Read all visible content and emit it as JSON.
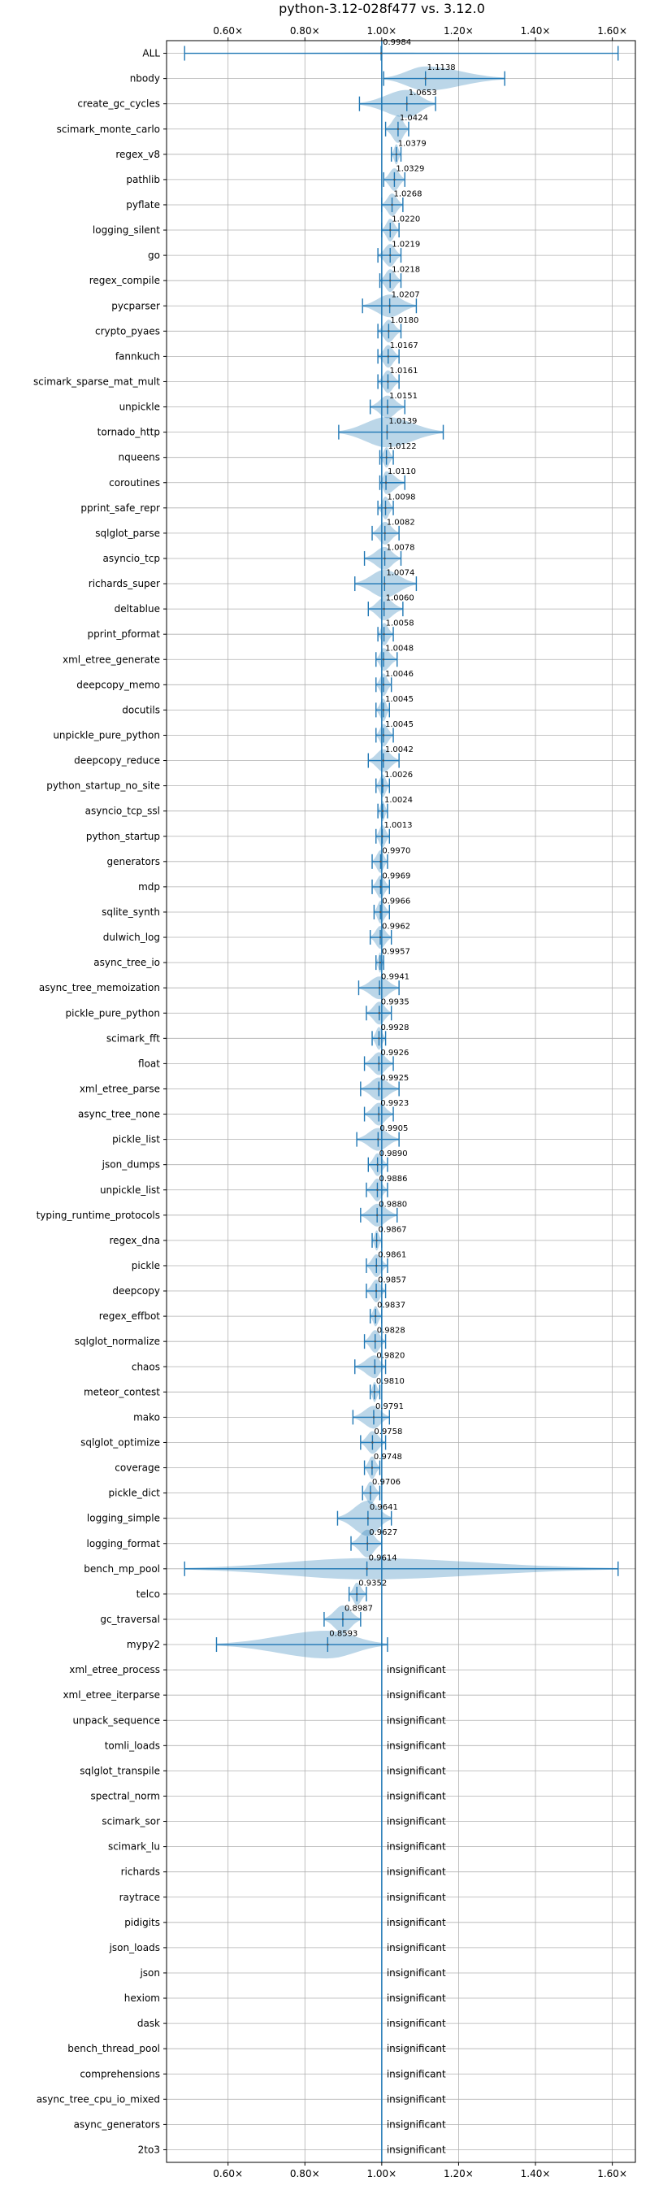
{
  "chart_data": {
    "type": "violin",
    "title": "python-3.12-028f477 vs. 3.12.0",
    "x_ticks": [
      "0.60×",
      "0.80×",
      "1.00×",
      "1.20×",
      "1.40×",
      "1.60×"
    ],
    "x_tick_values": [
      0.6,
      0.8,
      1.0,
      1.2,
      1.4,
      1.6
    ],
    "xlim": [
      0.44,
      1.66
    ],
    "reference_line": 1.0,
    "grid": true,
    "insignificant_label": "insignificant",
    "benchmarks": [
      {
        "name": "ALL",
        "value": 0.9984,
        "label": "0.9984",
        "min": 0.487,
        "max": 1.615,
        "width": 0.03
      },
      {
        "name": "nbody",
        "value": 1.1138,
        "label": "1.1138",
        "min": 1.005,
        "max": 1.32,
        "width": 0.48
      },
      {
        "name": "create_gc_cycles",
        "value": 1.0653,
        "label": "1.0653",
        "min": 0.942,
        "max": 1.14,
        "width": 0.55
      },
      {
        "name": "scimark_monte_carlo",
        "value": 1.0424,
        "label": "1.0424",
        "min": 1.01,
        "max": 1.07,
        "width": 0.55
      },
      {
        "name": "regex_v8",
        "value": 1.0379,
        "label": "1.0379",
        "min": 1.025,
        "max": 1.05,
        "width": 0.4
      },
      {
        "name": "pathlib",
        "value": 1.0329,
        "label": "1.0329",
        "min": 1.005,
        "max": 1.06,
        "width": 0.45
      },
      {
        "name": "pyflate",
        "value": 1.0268,
        "label": "1.0268",
        "min": 1.0,
        "max": 1.055,
        "width": 0.45
      },
      {
        "name": "logging_silent",
        "value": 1.022,
        "label": "1.0220",
        "min": 1.0,
        "max": 1.045,
        "width": 0.45
      },
      {
        "name": "go",
        "value": 1.0219,
        "label": "1.0219",
        "min": 0.99,
        "max": 1.05,
        "width": 0.45
      },
      {
        "name": "regex_compile",
        "value": 1.0218,
        "label": "1.0218",
        "min": 0.995,
        "max": 1.05,
        "width": 0.45
      },
      {
        "name": "pycparser",
        "value": 1.0207,
        "label": "1.0207",
        "min": 0.95,
        "max": 1.09,
        "width": 0.45
      },
      {
        "name": "crypto_pyaes",
        "value": 1.018,
        "label": "1.0180",
        "min": 0.99,
        "max": 1.05,
        "width": 0.45
      },
      {
        "name": "fannkuch",
        "value": 1.0167,
        "label": "1.0167",
        "min": 0.99,
        "max": 1.045,
        "width": 0.45
      },
      {
        "name": "scimark_sparse_mat_mult",
        "value": 1.0161,
        "label": "1.0161",
        "min": 0.99,
        "max": 1.045,
        "width": 0.45
      },
      {
        "name": "unpickle",
        "value": 1.0151,
        "label": "1.0151",
        "min": 0.97,
        "max": 1.06,
        "width": 0.45
      },
      {
        "name": "tornado_http",
        "value": 1.0139,
        "label": "1.0139",
        "min": 0.888,
        "max": 1.16,
        "width": 0.6
      },
      {
        "name": "nqueens",
        "value": 1.0122,
        "label": "1.0122",
        "min": 0.995,
        "max": 1.03,
        "width": 0.4
      },
      {
        "name": "coroutines",
        "value": 1.011,
        "label": "1.0110",
        "min": 0.995,
        "max": 1.06,
        "width": 0.45
      },
      {
        "name": "pprint_safe_repr",
        "value": 1.0098,
        "label": "1.0098",
        "min": 0.99,
        "max": 1.03,
        "width": 0.45
      },
      {
        "name": "sqlglot_parse",
        "value": 1.0082,
        "label": "1.0082",
        "min": 0.975,
        "max": 1.045,
        "width": 0.45
      },
      {
        "name": "asyncio_tcp",
        "value": 1.0078,
        "label": "1.0078",
        "min": 0.955,
        "max": 1.05,
        "width": 0.45
      },
      {
        "name": "richards_super",
        "value": 1.0074,
        "label": "1.0074",
        "min": 0.93,
        "max": 1.09,
        "width": 0.55
      },
      {
        "name": "deltablue",
        "value": 1.006,
        "label": "1.0060",
        "min": 0.965,
        "max": 1.055,
        "width": 0.45
      },
      {
        "name": "pprint_pformat",
        "value": 1.0058,
        "label": "1.0058",
        "min": 0.99,
        "max": 1.03,
        "width": 0.45
      },
      {
        "name": "xml_etree_generate",
        "value": 1.0048,
        "label": "1.0048",
        "min": 0.985,
        "max": 1.04,
        "width": 0.45
      },
      {
        "name": "deepcopy_memo",
        "value": 1.0046,
        "label": "1.0046",
        "min": 0.985,
        "max": 1.025,
        "width": 0.45
      },
      {
        "name": "docutils",
        "value": 1.0045,
        "label": "1.0045",
        "min": 0.985,
        "max": 1.02,
        "width": 0.45
      },
      {
        "name": "unpickle_pure_python",
        "value": 1.0045,
        "label": "1.0045",
        "min": 0.985,
        "max": 1.03,
        "width": 0.45
      },
      {
        "name": "deepcopy_reduce",
        "value": 1.0042,
        "label": "1.0042",
        "min": 0.965,
        "max": 1.045,
        "width": 0.45
      },
      {
        "name": "python_startup_no_site",
        "value": 1.0026,
        "label": "1.0026",
        "min": 0.985,
        "max": 1.02,
        "width": 0.45
      },
      {
        "name": "asyncio_tcp_ssl",
        "value": 1.0024,
        "label": "1.0024",
        "min": 0.99,
        "max": 1.015,
        "width": 0.4
      },
      {
        "name": "python_startup",
        "value": 1.0013,
        "label": "1.0013",
        "min": 0.985,
        "max": 1.02,
        "width": 0.45
      },
      {
        "name": "generators",
        "value": 0.997,
        "label": "0.9970",
        "min": 0.975,
        "max": 1.015,
        "width": 0.45
      },
      {
        "name": "mdp",
        "value": 0.9969,
        "label": "0.9969",
        "min": 0.975,
        "max": 1.02,
        "width": 0.45
      },
      {
        "name": "sqlite_synth",
        "value": 0.9966,
        "label": "0.9966",
        "min": 0.98,
        "max": 1.02,
        "width": 0.45
      },
      {
        "name": "dulwich_log",
        "value": 0.9962,
        "label": "0.9962",
        "min": 0.97,
        "max": 1.025,
        "width": 0.45
      },
      {
        "name": "async_tree_io",
        "value": 0.9957,
        "label": "0.9957",
        "min": 0.985,
        "max": 1.005,
        "width": 0.4
      },
      {
        "name": "async_tree_memoization",
        "value": 0.9941,
        "label": "0.9941",
        "min": 0.94,
        "max": 1.045,
        "width": 0.45
      },
      {
        "name": "pickle_pure_python",
        "value": 0.9935,
        "label": "0.9935",
        "min": 0.96,
        "max": 1.025,
        "width": 0.45
      },
      {
        "name": "scimark_fft",
        "value": 0.9928,
        "label": "0.9928",
        "min": 0.975,
        "max": 1.01,
        "width": 0.45
      },
      {
        "name": "float",
        "value": 0.9926,
        "label": "0.9926",
        "min": 0.955,
        "max": 1.03,
        "width": 0.45
      },
      {
        "name": "xml_etree_parse",
        "value": 0.9925,
        "label": "0.9925",
        "min": 0.945,
        "max": 1.045,
        "width": 0.45
      },
      {
        "name": "async_tree_none",
        "value": 0.9923,
        "label": "0.9923",
        "min": 0.955,
        "max": 1.03,
        "width": 0.45
      },
      {
        "name": "pickle_list",
        "value": 0.9905,
        "label": "0.9905",
        "min": 0.935,
        "max": 1.045,
        "width": 0.45
      },
      {
        "name": "json_dumps",
        "value": 0.989,
        "label": "0.9890",
        "min": 0.965,
        "max": 1.015,
        "width": 0.45
      },
      {
        "name": "unpickle_list",
        "value": 0.9886,
        "label": "0.9886",
        "min": 0.96,
        "max": 1.015,
        "width": 0.45
      },
      {
        "name": "typing_runtime_protocols",
        "value": 0.988,
        "label": "0.9880",
        "min": 0.945,
        "max": 1.04,
        "width": 0.45
      },
      {
        "name": "regex_dna",
        "value": 0.9867,
        "label": "0.9867",
        "min": 0.975,
        "max": 1.0,
        "width": 0.4
      },
      {
        "name": "pickle",
        "value": 0.9861,
        "label": "0.9861",
        "min": 0.96,
        "max": 1.015,
        "width": 0.45
      },
      {
        "name": "deepcopy",
        "value": 0.9857,
        "label": "0.9857",
        "min": 0.96,
        "max": 1.01,
        "width": 0.45
      },
      {
        "name": "regex_effbot",
        "value": 0.9837,
        "label": "0.9837",
        "min": 0.97,
        "max": 1.0,
        "width": 0.4
      },
      {
        "name": "sqlglot_normalize",
        "value": 0.9828,
        "label": "0.9828",
        "min": 0.955,
        "max": 1.01,
        "width": 0.45
      },
      {
        "name": "chaos",
        "value": 0.982,
        "label": "0.9820",
        "min": 0.93,
        "max": 1.01,
        "width": 0.45
      },
      {
        "name": "meteor_contest",
        "value": 0.981,
        "label": "0.9810",
        "min": 0.97,
        "max": 0.995,
        "width": 0.4
      },
      {
        "name": "mako",
        "value": 0.9791,
        "label": "0.9791",
        "min": 0.925,
        "max": 1.02,
        "width": 0.45
      },
      {
        "name": "sqlglot_optimize",
        "value": 0.9758,
        "label": "0.9758",
        "min": 0.945,
        "max": 1.01,
        "width": 0.45
      },
      {
        "name": "coverage",
        "value": 0.9748,
        "label": "0.9748",
        "min": 0.955,
        "max": 0.995,
        "width": 0.45
      },
      {
        "name": "pickle_dict",
        "value": 0.9706,
        "label": "0.9706",
        "min": 0.95,
        "max": 0.995,
        "width": 0.45
      },
      {
        "name": "logging_simple",
        "value": 0.9641,
        "label": "0.9641",
        "min": 0.885,
        "max": 1.025,
        "width": 0.7
      },
      {
        "name": "logging_format",
        "value": 0.9627,
        "label": "0.9627",
        "min": 0.92,
        "max": 1.0,
        "width": 0.55
      },
      {
        "name": "bench_mp_pool",
        "value": 0.9614,
        "label": "0.9614",
        "min": 0.487,
        "max": 1.615,
        "width": 0.42
      },
      {
        "name": "telco",
        "value": 0.9352,
        "label": "0.9352",
        "min": 0.915,
        "max": 0.96,
        "width": 0.45
      },
      {
        "name": "gc_traversal",
        "value": 0.8987,
        "label": "0.8987",
        "min": 0.85,
        "max": 0.945,
        "width": 0.55
      },
      {
        "name": "mypy2",
        "value": 0.8593,
        "label": "0.8593",
        "min": 0.57,
        "max": 1.015,
        "width": 0.55
      },
      {
        "name": "xml_etree_process",
        "insignificant": true
      },
      {
        "name": "xml_etree_iterparse",
        "insignificant": true
      },
      {
        "name": "unpack_sequence",
        "insignificant": true
      },
      {
        "name": "tomli_loads",
        "insignificant": true
      },
      {
        "name": "sqlglot_transpile",
        "insignificant": true
      },
      {
        "name": "spectral_norm",
        "insignificant": true
      },
      {
        "name": "scimark_sor",
        "insignificant": true
      },
      {
        "name": "scimark_lu",
        "insignificant": true
      },
      {
        "name": "richards",
        "insignificant": true
      },
      {
        "name": "raytrace",
        "insignificant": true
      },
      {
        "name": "pidigits",
        "insignificant": true
      },
      {
        "name": "json_loads",
        "insignificant": true
      },
      {
        "name": "json",
        "insignificant": true
      },
      {
        "name": "hexiom",
        "insignificant": true
      },
      {
        "name": "dask",
        "insignificant": true
      },
      {
        "name": "bench_thread_pool",
        "insignificant": true
      },
      {
        "name": "comprehensions",
        "insignificant": true
      },
      {
        "name": "async_tree_cpu_io_mixed",
        "insignificant": true
      },
      {
        "name": "async_generators",
        "insignificant": true
      },
      {
        "name": "2to3",
        "insignificant": true
      }
    ],
    "colors": {
      "line": "#1f77b4",
      "violin": "#1f77b4",
      "grid": "#b0b0b0",
      "text": "#000000"
    }
  }
}
